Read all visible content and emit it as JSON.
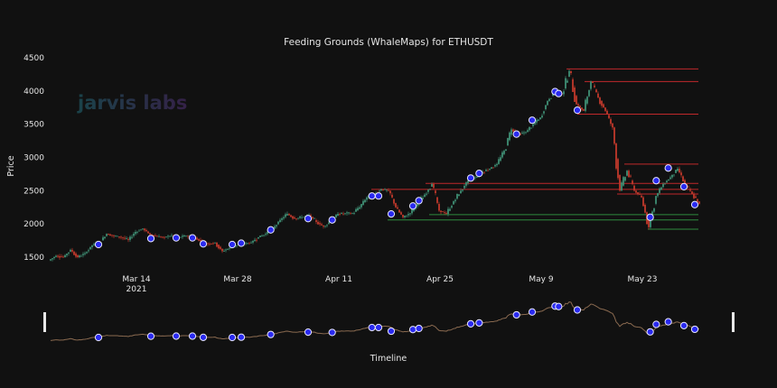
{
  "chart_data": {
    "type": "candlestick",
    "title": "Feeding Grounds (WhaleMaps) for ETHUSDT",
    "xlabel": "Timeline",
    "ylabel": "Price",
    "ylim": [
      1400,
      4600
    ],
    "xlim": [
      "2021-03-01 12:00",
      "2021-05-30 18:00"
    ],
    "y_ticks": [
      "1500",
      "2000",
      "2500",
      "3000",
      "3500",
      "4000",
      "4500"
    ],
    "x_ticks": [
      {
        "date": "2021-03-14",
        "label": "Mar 14",
        "sublabel": "2021"
      },
      {
        "date": "2021-03-28",
        "label": "Mar 28"
      },
      {
        "date": "2021-04-11",
        "label": "Apr 11"
      },
      {
        "date": "2021-04-25",
        "label": "Apr 25"
      },
      {
        "date": "2021-05-09",
        "label": "May 9"
      },
      {
        "date": "2021-05-23",
        "label": "May 23"
      }
    ],
    "grid": false,
    "range_slider": true,
    "start_date": "2021-03-02",
    "start_open": 1450,
    "daily_close": [
      1520,
      1500,
      1610,
      1500,
      1560,
      1680,
      1720,
      1850,
      1820,
      1800,
      1760,
      1880,
      1930,
      1840,
      1810,
      1800,
      1830,
      1800,
      1820,
      1810,
      1740,
      1700,
      1720,
      1590,
      1640,
      1680,
      1700,
      1720,
      1800,
      1850,
      1930,
      2060,
      2150,
      2080,
      2100,
      2130,
      2030,
      1960,
      2040,
      2150,
      2160,
      2160,
      2250,
      2400,
      2450,
      2520,
      2500,
      2250,
      2100,
      2160,
      2300,
      2440,
      2600,
      2200,
      2150,
      2340,
      2500,
      2650,
      2700,
      2780,
      2830,
      2900,
      3100,
      3420,
      3350,
      3380,
      3500,
      3600,
      3850,
      4000,
      3950,
      4300,
      3800,
      3700,
      4140,
      3900,
      3700,
      3450,
      2500,
      2800,
      2500,
      2400,
      1950,
      2420,
      2600,
      2700,
      2830,
      2600,
      2450,
      2300
    ],
    "whale_markers": [
      {
        "date": "2021-03-08 18:00",
        "price": 1690
      },
      {
        "date": "2021-03-16 00:00",
        "price": 1780
      },
      {
        "date": "2021-03-19 12:00",
        "price": 1790
      },
      {
        "date": "2021-03-21 18:00",
        "price": 1790
      },
      {
        "date": "2021-03-23 06:00",
        "price": 1700
      },
      {
        "date": "2021-03-27 06:00",
        "price": 1690
      },
      {
        "date": "2021-03-28 12:00",
        "price": 1710
      },
      {
        "date": "2021-04-01 14:00",
        "price": 1910
      },
      {
        "date": "2021-04-06 18:00",
        "price": 2080
      },
      {
        "date": "2021-04-10 02:00",
        "price": 2060
      },
      {
        "date": "2021-04-15 14:00",
        "price": 2420
      },
      {
        "date": "2021-04-16 12:00",
        "price": 2420
      },
      {
        "date": "2021-04-18 06:00",
        "price": 2150
      },
      {
        "date": "2021-04-21 06:00",
        "price": 2270
      },
      {
        "date": "2021-04-22 02:00",
        "price": 2350
      },
      {
        "date": "2021-04-29 06:00",
        "price": 2690
      },
      {
        "date": "2021-04-30 10:00",
        "price": 2760
      },
      {
        "date": "2021-05-05 14:00",
        "price": 3350
      },
      {
        "date": "2021-05-07 18:00",
        "price": 3560
      },
      {
        "date": "2021-05-10 22:00",
        "price": 3990
      },
      {
        "date": "2021-05-11 10:00",
        "price": 3960
      },
      {
        "date": "2021-05-14 00:00",
        "price": 3710
      },
      {
        "date": "2021-05-24 02:00",
        "price": 2100
      },
      {
        "date": "2021-05-24 22:00",
        "price": 2650
      },
      {
        "date": "2021-05-26 14:00",
        "price": 2840
      },
      {
        "date": "2021-05-28 18:00",
        "price": 2560
      },
      {
        "date": "2021-05-30 06:00",
        "price": 2290
      }
    ],
    "levels": [
      {
        "price": 4330,
        "from": "2021-05-12 12:00",
        "side": "resistance"
      },
      {
        "price": 4140,
        "from": "2021-05-15 00:00",
        "side": "resistance"
      },
      {
        "price": 3650,
        "from": "2021-05-14 00:00",
        "side": "resistance"
      },
      {
        "price": 2900,
        "from": "2021-05-20 12:00",
        "side": "resistance"
      },
      {
        "price": 2610,
        "from": "2021-04-23 00:00",
        "side": "resistance"
      },
      {
        "price": 2520,
        "from": "2021-04-15 12:00",
        "side": "resistance"
      },
      {
        "price": 2450,
        "from": "2021-05-19 12:00",
        "side": "resistance"
      },
      {
        "price": 2140,
        "from": "2021-04-23 12:00",
        "side": "support"
      },
      {
        "price": 2060,
        "from": "2021-04-17 18:00",
        "side": "support"
      },
      {
        "price": 1920,
        "from": "2021-05-23 18:00",
        "side": "support"
      }
    ],
    "colors": {
      "background": "#111111",
      "increasing": "#3f8f74",
      "decreasing": "#c0392b",
      "marker": "#2a2af0",
      "marker_border": "#e8e8ff",
      "resistance": "#c0282b",
      "support": "#2e8b3e",
      "text": "#e6e6e6"
    }
  },
  "watermark": {
    "text": "jarvis labs"
  }
}
